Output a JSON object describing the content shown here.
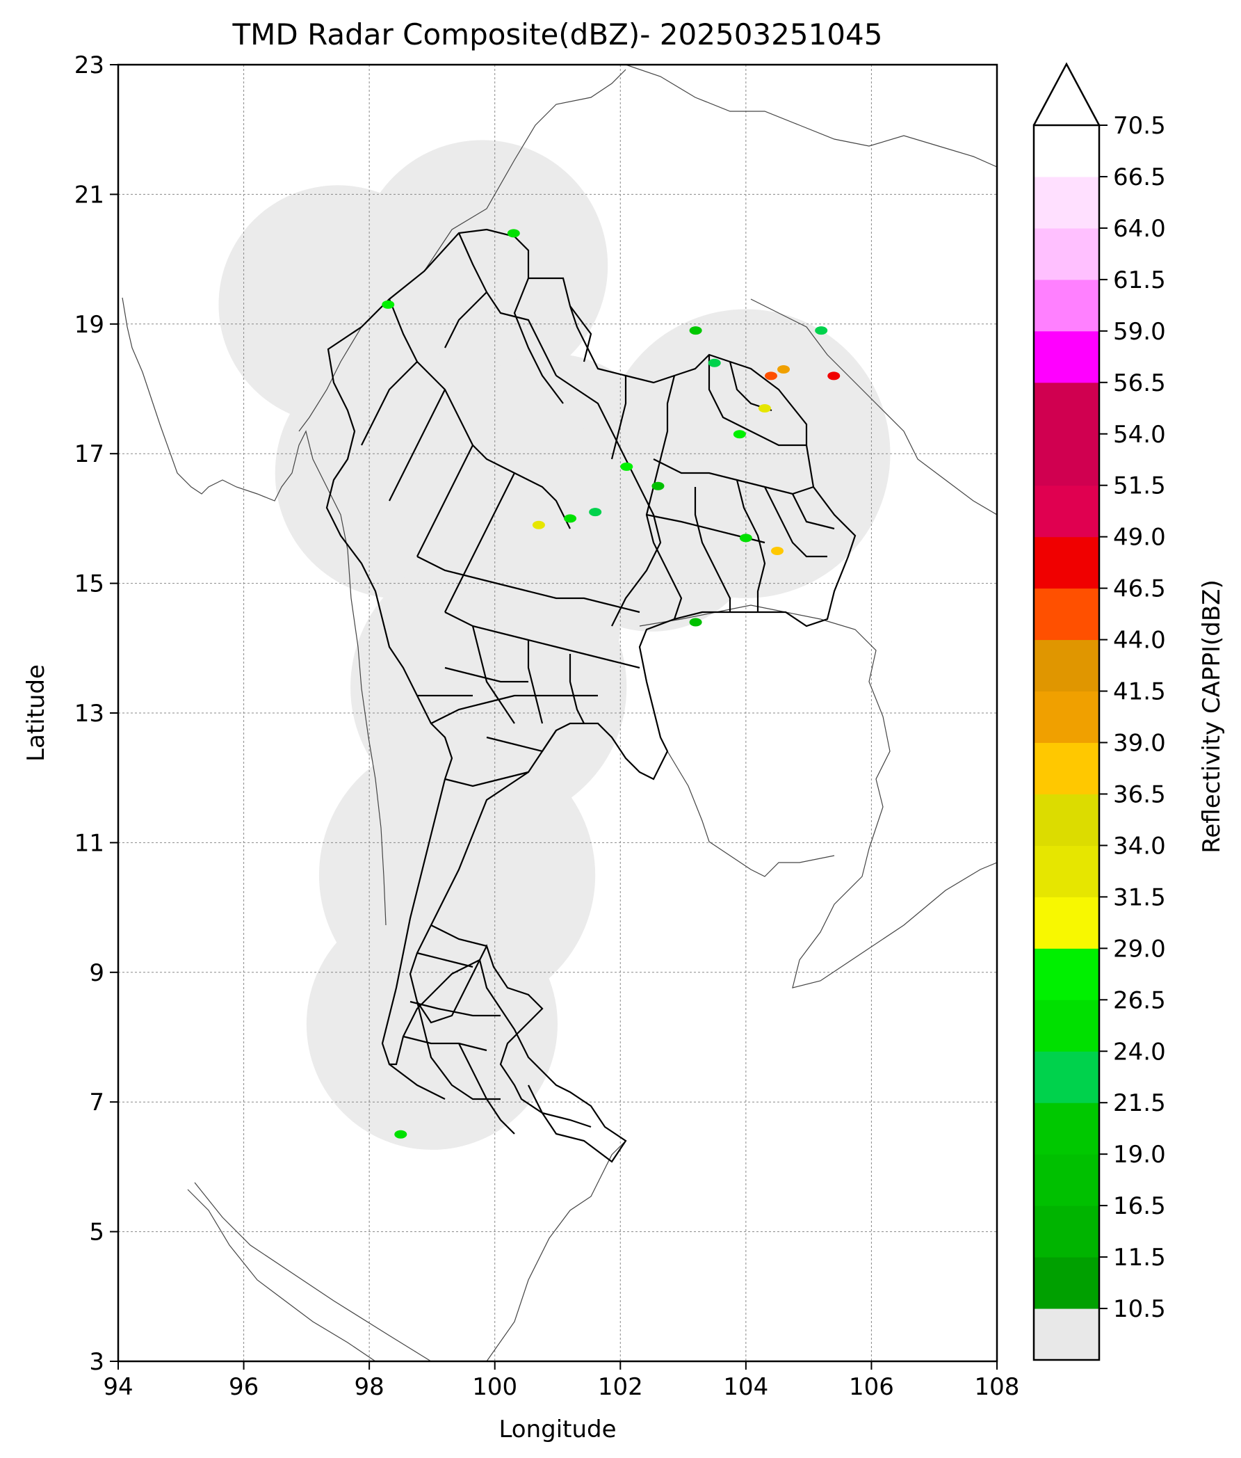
{
  "title": "TMD Radar Composite(dBZ)- 202503251045",
  "axes": {
    "xlabel": "Longitude",
    "ylabel": "Latitude",
    "x_ticks": [
      "94",
      "96",
      "98",
      "100",
      "102",
      "104",
      "106",
      "108"
    ],
    "y_ticks": [
      "23",
      "21",
      "19",
      "17",
      "15",
      "13",
      "11",
      "9",
      "7",
      "5",
      "3"
    ],
    "xlim": [
      94,
      108
    ],
    "ylim": [
      3,
      23
    ],
    "grid": true
  },
  "colorbar": {
    "label": "Reflectivity CAPPI(dBZ)",
    "extend": "max",
    "tick_labels": [
      "70.5",
      "66.5",
      "64.0",
      "61.5",
      "59.0",
      "56.5",
      "54.0",
      "51.5",
      "49.0",
      "46.5",
      "44.0",
      "41.5",
      "39.0",
      "36.5",
      "34.0",
      "31.5",
      "29.0",
      "26.5",
      "24.0",
      "21.5",
      "19.0",
      "16.5",
      "11.5",
      "10.5"
    ],
    "bands_bottom_to_top": [
      "#e8e8e8",
      "#00a000",
      "#00b400",
      "#00c000",
      "#00c800",
      "#00d24c",
      "#00e000",
      "#00f000",
      "#f8f800",
      "#e6e600",
      "#dcdc00",
      "#ffc800",
      "#f0a000",
      "#e09600",
      "#ff5000",
      "#f00000",
      "#e00050",
      "#d00050",
      "#d00050",
      "#ff00ff",
      "#ff80ff",
      "#ffc0ff",
      "#ffe0ff",
      "#ffffff"
    ]
  },
  "map": {
    "radar_coverage_color": "#ebebeb",
    "coverage_circles": [
      {
        "lon": 97.5,
        "lat": 19.3,
        "radius_deg": 1.9
      },
      {
        "lon": 99.8,
        "lat": 19.9,
        "radius_deg": 2.0
      },
      {
        "lon": 98.5,
        "lat": 16.7,
        "radius_deg": 2.0
      },
      {
        "lon": 100.9,
        "lat": 16.7,
        "radius_deg": 1.9
      },
      {
        "lon": 104.0,
        "lat": 17.0,
        "radius_deg": 2.3
      },
      {
        "lon": 102.5,
        "lat": 16.0,
        "radius_deg": 1.8
      },
      {
        "lon": 100.1,
        "lat": 14.4,
        "radius_deg": 1.9
      },
      {
        "lon": 99.9,
        "lat": 13.4,
        "radius_deg": 2.2
      },
      {
        "lon": 99.4,
        "lat": 10.5,
        "radius_deg": 2.2
      },
      {
        "lon": 99.0,
        "lat": 8.2,
        "radius_deg": 2.0
      }
    ],
    "echoes": [
      {
        "lon": 100.7,
        "lat": 15.9,
        "color": "#e6e600"
      },
      {
        "lon": 101.2,
        "lat": 16.0,
        "color": "#00e000"
      },
      {
        "lon": 101.6,
        "lat": 16.1,
        "color": "#00d24c"
      },
      {
        "lon": 102.1,
        "lat": 16.8,
        "color": "#00f000"
      },
      {
        "lon": 102.6,
        "lat": 16.5,
        "color": "#00c000"
      },
      {
        "lon": 103.2,
        "lat": 18.9,
        "color": "#00c800"
      },
      {
        "lon": 103.5,
        "lat": 18.4,
        "color": "#00d24c"
      },
      {
        "lon": 103.9,
        "lat": 17.3,
        "color": "#00f000"
      },
      {
        "lon": 104.3,
        "lat": 17.7,
        "color": "#e6e600"
      },
      {
        "lon": 104.6,
        "lat": 18.3,
        "color": "#f0a000"
      },
      {
        "lon": 104.4,
        "lat": 18.2,
        "color": "#ff5000"
      },
      {
        "lon": 104.5,
        "lat": 15.5,
        "color": "#ffc800"
      },
      {
        "lon": 104.0,
        "lat": 15.7,
        "color": "#00e000"
      },
      {
        "lon": 105.2,
        "lat": 18.9,
        "color": "#00d24c"
      },
      {
        "lon": 105.4,
        "lat": 18.2,
        "color": "#f00000"
      },
      {
        "lon": 103.2,
        "lat": 14.4,
        "color": "#00c000"
      },
      {
        "lon": 98.3,
        "lat": 19.3,
        "color": "#00f000"
      },
      {
        "lon": 98.5,
        "lat": 6.5,
        "color": "#00e000"
      },
      {
        "lon": 100.3,
        "lat": 20.4,
        "color": "#00e000"
      }
    ]
  }
}
